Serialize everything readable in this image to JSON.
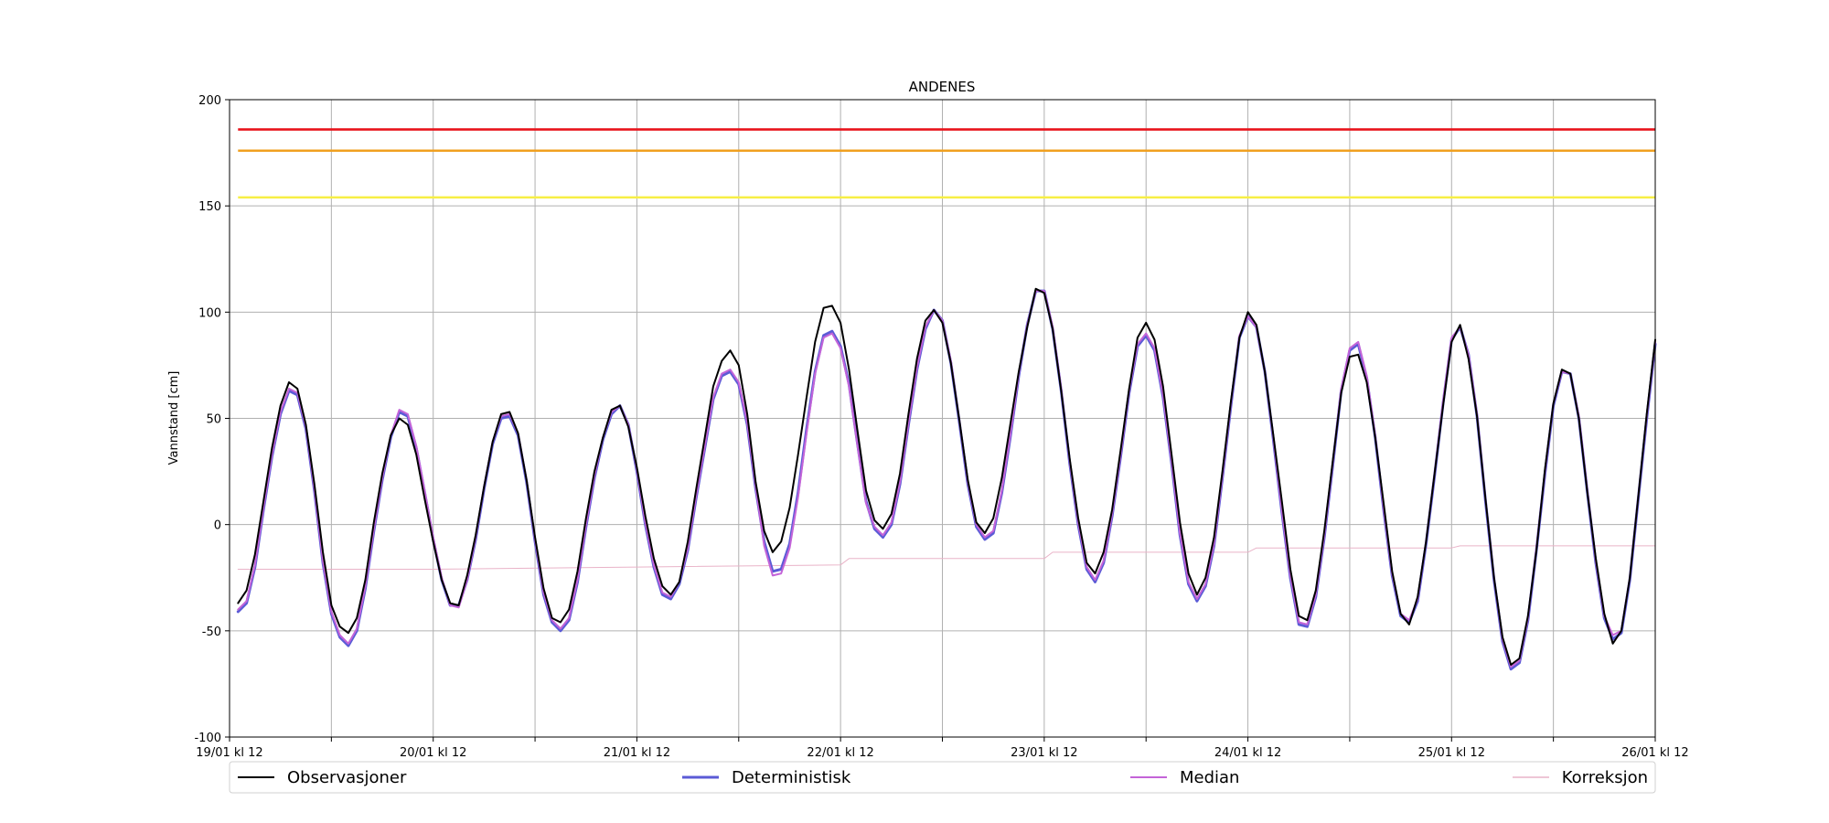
{
  "chart_data": {
    "type": "line",
    "title": "ANDENES",
    "xlabel": "",
    "ylabel": "Vannstand [cm]",
    "ylim": [
      -100,
      200
    ],
    "yticks": [
      -100,
      -50,
      0,
      50,
      100,
      150,
      200
    ],
    "xlim_hours": [
      0,
      168
    ],
    "xticks": [
      {
        "hour": 0,
        "label": "19/01 kl 12"
      },
      {
        "hour": 12,
        "label": ""
      },
      {
        "hour": 24,
        "label": "20/01 kl 12"
      },
      {
        "hour": 36,
        "label": ""
      },
      {
        "hour": 48,
        "label": "21/01 kl 12"
      },
      {
        "hour": 60,
        "label": ""
      },
      {
        "hour": 72,
        "label": "22/01 kl 12"
      },
      {
        "hour": 84,
        "label": ""
      },
      {
        "hour": 96,
        "label": "23/01 kl 12"
      },
      {
        "hour": 108,
        "label": ""
      },
      {
        "hour": 120,
        "label": "24/01 kl 12"
      },
      {
        "hour": 132,
        "label": ""
      },
      {
        "hour": 144,
        "label": "25/01 kl 12"
      },
      {
        "hour": 156,
        "label": ""
      },
      {
        "hour": 168,
        "label": "26/01 kl 12"
      }
    ],
    "grid": true,
    "thresholds": [
      {
        "value": 186,
        "color": "#e8141c"
      },
      {
        "value": 176,
        "color": "#f0a020"
      },
      {
        "value": 154,
        "color": "#f7ef45"
      }
    ],
    "legend_position": "bottom",
    "series": [
      {
        "name": "Observasjoner",
        "color": "#000000",
        "width": 2,
        "x": [
          1,
          2,
          3,
          4,
          5,
          6,
          7,
          8,
          9,
          10,
          11,
          12,
          13,
          14,
          15,
          16,
          17,
          18,
          19,
          20,
          21,
          22,
          23,
          24,
          25,
          26,
          27,
          28,
          29,
          30,
          31,
          32,
          33,
          34,
          35,
          36,
          37,
          38,
          39,
          40,
          41,
          42,
          43,
          44,
          45,
          46,
          47,
          48,
          49,
          50,
          51,
          52,
          53,
          54,
          55,
          56,
          57,
          58,
          59,
          60,
          61,
          62,
          63,
          64,
          65,
          66,
          67,
          68,
          69,
          70,
          71,
          72,
          73,
          74,
          75,
          76,
          77,
          78,
          79,
          80,
          81,
          82,
          83,
          84,
          85,
          86,
          87,
          88,
          89,
          90,
          91,
          92,
          93,
          94,
          95,
          96,
          97,
          98,
          99,
          100,
          101,
          102,
          103,
          104,
          105,
          106,
          107,
          108,
          109,
          110,
          111,
          112,
          113,
          114,
          115,
          116,
          117,
          118,
          119,
          120,
          121,
          122,
          123,
          124,
          125,
          126,
          127,
          128,
          129,
          130,
          131,
          132,
          133,
          134,
          135,
          136,
          137,
          138,
          139,
          140,
          141,
          142,
          143,
          144,
          145,
          146,
          147,
          148,
          149,
          150,
          151,
          152,
          153,
          154,
          155,
          156,
          157,
          158,
          159,
          160,
          161,
          162,
          163,
          164,
          165,
          166,
          167,
          168
        ],
        "y": [
          -37,
          -31,
          -14,
          11,
          36,
          56,
          67,
          64,
          47,
          19,
          -13,
          -38,
          -48,
          -51,
          -44,
          -26,
          1,
          24,
          42,
          50,
          47,
          33,
          12,
          -8,
          -26,
          -37,
          -38,
          -24,
          -5,
          18,
          39,
          52,
          53,
          43,
          21,
          -6,
          -30,
          -44,
          -46,
          -40,
          -22,
          3,
          25,
          41,
          54,
          56,
          46,
          27,
          4,
          -16,
          -29,
          -33,
          -27,
          -8,
          17,
          41,
          65,
          77,
          82,
          75,
          52,
          20,
          -3,
          -13,
          -8,
          8,
          33,
          60,
          86,
          102,
          103,
          95,
          73,
          44,
          16,
          2,
          -2,
          5,
          24,
          52,
          78,
          96,
          101,
          95,
          76,
          49,
          21,
          1,
          -4,
          3,
          22,
          47,
          72,
          93,
          111,
          109,
          92,
          63,
          31,
          3,
          -18,
          -23,
          -13,
          7,
          35,
          64,
          88,
          95,
          87,
          65,
          33,
          1,
          -23,
          -33,
          -25,
          -6,
          25,
          58,
          88,
          100,
          94,
          72,
          42,
          11,
          -21,
          -43,
          -45,
          -31,
          -3,
          30,
          62,
          79,
          80,
          67,
          41,
          10,
          -22,
          -42,
          -47,
          -34,
          -8,
          24,
          56,
          86,
          94,
          78,
          51,
          12,
          -25,
          -53,
          -66,
          -63,
          -43,
          -12,
          26,
          57,
          73,
          71,
          50,
          15,
          -16,
          -42,
          -56,
          -50,
          -25,
          13,
          52,
          87
        ]
      },
      {
        "name": "Deterministisk",
        "color": "#5b5bd6",
        "width": 3,
        "x": [
          1,
          2,
          3,
          4,
          5,
          6,
          7,
          8,
          9,
          10,
          11,
          12,
          13,
          14,
          15,
          16,
          17,
          18,
          19,
          20,
          21,
          22,
          23,
          24,
          25,
          26,
          27,
          28,
          29,
          30,
          31,
          32,
          33,
          34,
          35,
          36,
          37,
          38,
          39,
          40,
          41,
          42,
          43,
          44,
          45,
          46,
          47,
          48,
          49,
          50,
          51,
          52,
          53,
          54,
          55,
          56,
          57,
          58,
          59,
          60,
          61,
          62,
          63,
          64,
          65,
          66,
          67,
          68,
          69,
          70,
          71,
          72,
          73,
          74,
          75,
          76,
          77,
          78,
          79,
          80,
          81,
          82,
          83,
          84,
          85,
          86,
          87,
          88,
          89,
          90,
          91,
          92,
          93,
          94,
          95,
          96,
          97,
          98,
          99,
          100,
          101,
          102,
          103,
          104,
          105,
          106,
          107,
          108,
          109,
          110,
          111,
          112,
          113,
          114,
          115,
          116,
          117,
          118,
          119,
          120,
          121,
          122,
          123,
          124,
          125,
          126,
          127,
          128,
          129,
          130,
          131,
          132,
          133,
          134,
          135,
          136,
          137,
          138,
          139,
          140,
          141,
          142,
          143,
          144,
          145,
          146,
          147,
          148,
          149,
          150,
          151,
          152,
          153,
          154,
          155,
          156,
          157,
          158,
          159,
          160,
          161,
          162,
          163,
          164,
          165,
          166,
          167,
          168
        ],
        "y": [
          -41,
          -37,
          -20,
          7,
          32,
          52,
          63,
          61,
          45,
          16,
          -18,
          -42,
          -53,
          -57,
          -50,
          -30,
          -3,
          21,
          41,
          53,
          51,
          36,
          15,
          -7,
          -26,
          -38,
          -38,
          -26,
          -7,
          17,
          38,
          50,
          51,
          42,
          20,
          -8,
          -33,
          -46,
          -50,
          -45,
          -27,
          -1,
          22,
          40,
          52,
          56,
          47,
          25,
          0,
          -20,
          -33,
          -35,
          -28,
          -12,
          13,
          36,
          59,
          70,
          72,
          66,
          47,
          17,
          -8,
          -22,
          -21,
          -9,
          15,
          45,
          72,
          89,
          91,
          84,
          66,
          38,
          11,
          -2,
          -6,
          0,
          19,
          47,
          73,
          92,
          101,
          96,
          76,
          48,
          19,
          -1,
          -7,
          -4,
          15,
          41,
          70,
          94,
          110,
          110,
          92,
          63,
          29,
          0,
          -21,
          -27,
          -18,
          4,
          32,
          62,
          84,
          89,
          82,
          60,
          29,
          -5,
          -28,
          -36,
          -29,
          -10,
          22,
          56,
          88,
          98,
          93,
          72,
          40,
          6,
          -25,
          -47,
          -48,
          -34,
          -6,
          28,
          63,
          82,
          85,
          69,
          41,
          7,
          -24,
          -43,
          -46,
          -36,
          -9,
          23,
          57,
          87,
          93,
          80,
          51,
          11,
          -26,
          -55,
          -68,
          -65,
          -45,
          -12,
          24,
          56,
          72,
          71,
          50,
          15,
          -18,
          -44,
          -54,
          -51,
          -26,
          12,
          50,
          85
        ]
      },
      {
        "name": "Median",
        "color": "#c464d8",
        "width": 2,
        "x": [
          1,
          2,
          3,
          4,
          5,
          6,
          7,
          8,
          9,
          10,
          11,
          12,
          13,
          14,
          15,
          16,
          17,
          18,
          19,
          20,
          21,
          22,
          23,
          24,
          25,
          26,
          27,
          28,
          29,
          30,
          31,
          32,
          33,
          34,
          35,
          36,
          37,
          38,
          39,
          40,
          41,
          42,
          43,
          44,
          45,
          46,
          47,
          48,
          49,
          50,
          51,
          52,
          53,
          54,
          55,
          56,
          57,
          58,
          59,
          60,
          61,
          62,
          63,
          64,
          65,
          66,
          67,
          68,
          69,
          70,
          71,
          72,
          73,
          74,
          75,
          76,
          77,
          78,
          79,
          80,
          81,
          82,
          83,
          84,
          85,
          86,
          87,
          88,
          89,
          90,
          91,
          92,
          93,
          94,
          95,
          96,
          97,
          98,
          99,
          100,
          101,
          102,
          103,
          104,
          105,
          106,
          107,
          108,
          109,
          110,
          111,
          112,
          113,
          114,
          115,
          116,
          117,
          118,
          119,
          120,
          121,
          122,
          123,
          124,
          125,
          126,
          127,
          128,
          129,
          130,
          131,
          132,
          133,
          134,
          135,
          136,
          137,
          138,
          139,
          140,
          141,
          142,
          143,
          144,
          145,
          146,
          147,
          148,
          149,
          150,
          151,
          152,
          153,
          154,
          155,
          156,
          157,
          158,
          159,
          160,
          161,
          162,
          163,
          164,
          165,
          166,
          167,
          168
        ],
        "y": [
          -40,
          -36,
          -19,
          8,
          33,
          53,
          64,
          62,
          46,
          17,
          -17,
          -41,
          -52,
          -56,
          -49,
          -29,
          -2,
          22,
          42,
          54,
          52,
          37,
          16,
          -6,
          -25,
          -38,
          -39,
          -26,
          -6,
          18,
          39,
          51,
          52,
          43,
          21,
          -7,
          -32,
          -45,
          -49,
          -44,
          -26,
          0,
          23,
          41,
          53,
          56,
          47,
          26,
          1,
          -19,
          -32,
          -34,
          -27,
          -11,
          14,
          37,
          60,
          71,
          73,
          67,
          48,
          18,
          -10,
          -24,
          -23,
          -11,
          13,
          43,
          71,
          88,
          90,
          83,
          65,
          37,
          10,
          -1,
          -5,
          1,
          20,
          48,
          74,
          93,
          101,
          96,
          77,
          49,
          20,
          0,
          -6,
          -3,
          16,
          42,
          71,
          94,
          110,
          110,
          93,
          64,
          30,
          1,
          -20,
          -26,
          -17,
          5,
          33,
          63,
          85,
          90,
          83,
          61,
          30,
          -4,
          -27,
          -35,
          -28,
          -9,
          23,
          57,
          89,
          98,
          93,
          72,
          41,
          7,
          -24,
          -46,
          -47,
          -33,
          -5,
          29,
          64,
          83,
          86,
          70,
          42,
          8,
          -23,
          -42,
          -45,
          -35,
          -8,
          24,
          58,
          88,
          93,
          80,
          52,
          12,
          -25,
          -54,
          -67,
          -64,
          -44,
          -11,
          25,
          57,
          72,
          71,
          51,
          16,
          -17,
          -43,
          -52,
          -50,
          -25,
          13,
          51,
          86
        ]
      },
      {
        "name": "Korreksjon",
        "color": "#e9b3c8",
        "width": 1,
        "x": [
          1,
          24,
          48,
          72,
          73,
          96,
          97,
          120,
          121,
          144,
          145,
          168
        ],
        "y": [
          -21,
          -21,
          -20,
          -19,
          -16,
          -16,
          -13,
          -13,
          -11,
          -11,
          -10,
          -10
        ]
      }
    ]
  }
}
